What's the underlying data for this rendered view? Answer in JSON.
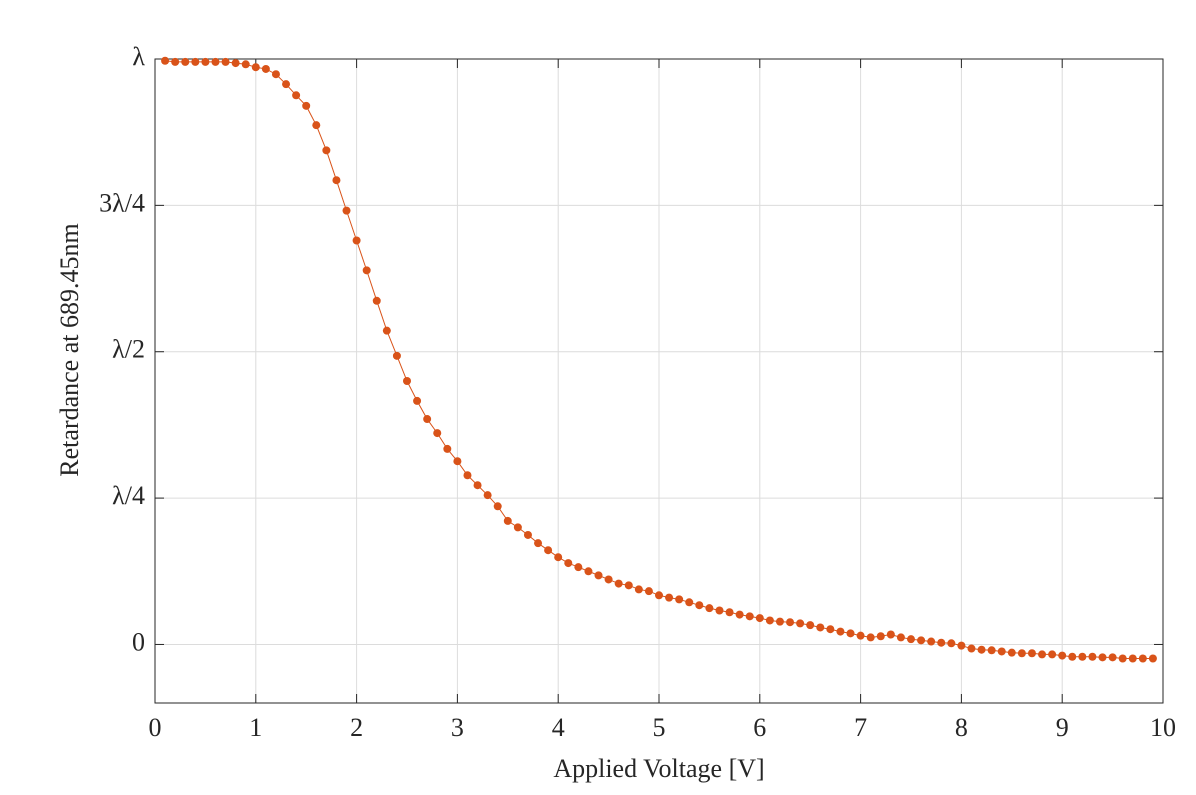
{
  "chart_data": {
    "type": "line",
    "xlabel": "Applied Voltage [V]",
    "ylabel": "Retardance at 689.45nm",
    "x": [
      0.1,
      0.2,
      0.3,
      0.4,
      0.5,
      0.6,
      0.7,
      0.8,
      0.9,
      1.0,
      1.1,
      1.2,
      1.3,
      1.4,
      1.5,
      1.6,
      1.7,
      1.8,
      1.9,
      2.0,
      2.1,
      2.2,
      2.3,
      2.4,
      2.5,
      2.6,
      2.7,
      2.8,
      2.9,
      3.0,
      3.1,
      3.2,
      3.3,
      3.4,
      3.5,
      3.6,
      3.7,
      3.8,
      3.9,
      4.0,
      4.1,
      4.2,
      4.3,
      4.4,
      4.5,
      4.6,
      4.7,
      4.8,
      4.9,
      5.0,
      5.1,
      5.2,
      5.3,
      5.4,
      5.5,
      5.6,
      5.7,
      5.8,
      5.9,
      6.0,
      6.1,
      6.2,
      6.3,
      6.4,
      6.5,
      6.6,
      6.7,
      6.8,
      6.9,
      7.0,
      7.1,
      7.2,
      7.3,
      7.4,
      7.5,
      7.6,
      7.7,
      7.8,
      7.9,
      8.0,
      8.1,
      8.2,
      8.3,
      8.4,
      8.5,
      8.6,
      8.7,
      8.8,
      8.9,
      9.0,
      9.1,
      9.2,
      9.3,
      9.4,
      9.5,
      9.6,
      9.7,
      9.8,
      9.9
    ],
    "series": [
      {
        "name": "Retardance",
        "color": "#d95319",
        "values": [
          0.997,
          0.995,
          0.995,
          0.995,
          0.995,
          0.995,
          0.995,
          0.993,
          0.991,
          0.986,
          0.983,
          0.974,
          0.957,
          0.938,
          0.92,
          0.887,
          0.844,
          0.793,
          0.741,
          0.69,
          0.639,
          0.587,
          0.536,
          0.493,
          0.45,
          0.416,
          0.385,
          0.361,
          0.334,
          0.313,
          0.289,
          0.272,
          0.255,
          0.236,
          0.211,
          0.2,
          0.187,
          0.173,
          0.161,
          0.149,
          0.139,
          0.132,
          0.125,
          0.118,
          0.111,
          0.104,
          0.101,
          0.094,
          0.091,
          0.084,
          0.08,
          0.077,
          0.072,
          0.067,
          0.062,
          0.058,
          0.055,
          0.051,
          0.048,
          0.045,
          0.041,
          0.039,
          0.038,
          0.036,
          0.033,
          0.029,
          0.026,
          0.022,
          0.019,
          0.015,
          0.012,
          0.014,
          0.017,
          0.012,
          0.009,
          0.007,
          0.005,
          0.003,
          0.002,
          -0.002,
          -0.007,
          -0.009,
          -0.01,
          -0.012,
          -0.014,
          -0.015,
          -0.015,
          -0.017,
          -0.017,
          -0.019,
          -0.021,
          -0.021,
          -0.021,
          -0.022,
          -0.022,
          -0.024,
          -0.024,
          -0.024,
          -0.024
        ]
      }
    ],
    "xlim": [
      0,
      10
    ],
    "xticks": [
      0,
      1,
      2,
      3,
      4,
      5,
      6,
      7,
      8,
      9,
      10
    ],
    "ylim": [
      -0.1,
      1
    ],
    "yticks": [
      0,
      {
        "value": 0.25,
        "label": "λ/4"
      },
      {
        "value": 0.5,
        "label": "λ/2"
      },
      {
        "value": 0.75,
        "label": "3λ/4"
      },
      {
        "value": 1,
        "label": "λ"
      }
    ],
    "grid": true
  }
}
